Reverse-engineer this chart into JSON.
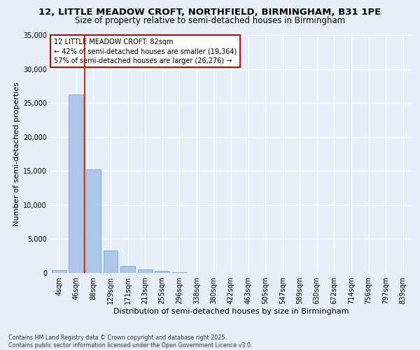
{
  "title_line1": "12, LITTLE MEADOW CROFT, NORTHFIELD, BIRMINGHAM, B31 1PE",
  "title_line2": "Size of property relative to semi-detached houses in Birmingham",
  "xlabel": "Distribution of semi-detached houses by size in Birmingham",
  "ylabel": "Number of semi-detached properties",
  "footnote": "Contains HM Land Registry data © Crown copyright and database right 2025.\nContains public sector information licensed under the Open Government Licence v3.0.",
  "categories": [
    "4sqm",
    "46sqm",
    "88sqm",
    "129sqm",
    "171sqm",
    "213sqm",
    "255sqm",
    "296sqm",
    "338sqm",
    "380sqm",
    "422sqm",
    "463sqm",
    "505sqm",
    "547sqm",
    "589sqm",
    "630sqm",
    "672sqm",
    "714sqm",
    "756sqm",
    "797sqm",
    "839sqm"
  ],
  "values": [
    400,
    26300,
    15200,
    3300,
    1050,
    500,
    300,
    80,
    0,
    0,
    0,
    0,
    0,
    0,
    0,
    0,
    0,
    0,
    0,
    0,
    0
  ],
  "bar_color": "#aec6e8",
  "bar_edge_color": "#5a9fd4",
  "red_line_index": 2,
  "red_line_color": "#cc0000",
  "annotation_text": "12 LITTLE MEADOW CROFT: 82sqm\n← 42% of semi-detached houses are smaller (19,364)\n57% of semi-detached houses are larger (26,276) →",
  "annotation_box_color": "#ffffff",
  "annotation_box_edge": "#cc0000",
  "ylim": [
    0,
    35000
  ],
  "yticks": [
    0,
    5000,
    10000,
    15000,
    20000,
    25000,
    30000,
    35000
  ],
  "bg_color": "#e8eef8",
  "grid_color": "#ffffff",
  "title_fontsize": 9.5,
  "subtitle_fontsize": 8.5,
  "axis_label_fontsize": 8,
  "tick_fontsize": 7,
  "annotation_fontsize": 7,
  "footnote_fontsize": 5.8
}
